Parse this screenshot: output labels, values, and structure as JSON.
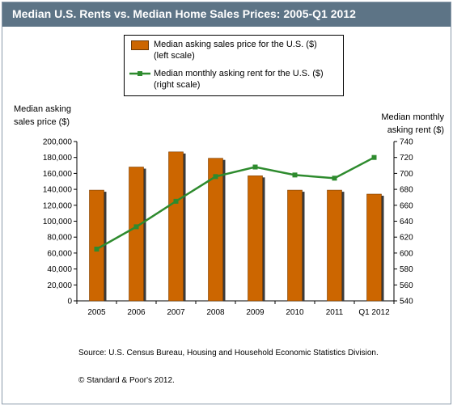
{
  "header": {
    "title": "Median U.S. Rents vs. Median Home Sales Prices: 2005-Q1 2012"
  },
  "legend": {
    "bar_label_line1": "Median asking sales price for the U.S. ($)",
    "bar_label_line2": "(left scale)",
    "line_label_line1": "Median monthly asking rent for the U.S. ($)",
    "line_label_line2": "(right scale)"
  },
  "axes": {
    "left_title_line1": "Median asking",
    "left_title_line2": "sales price  ($)",
    "right_title_line1": "Median monthly",
    "right_title_line2": "asking rent ($)"
  },
  "footer": {
    "source": "Source: U.S. Census Bureau, Housing and Household Economic Statistics Division.",
    "copyright": "© Standard & Poor's 2012."
  },
  "colors": {
    "bar": "#cc6600",
    "bar_shadow": "#3b3b3b",
    "line": "#2e8b2e",
    "title_bar": "#5d7486"
  },
  "chart_data": {
    "type": "bar",
    "categories": [
      "2005",
      "2006",
      "2007",
      "2008",
      "2009",
      "2010",
      "2011",
      "Q1 2012"
    ],
    "series": [
      {
        "name": "Median asking sales price for the U.S. ($)",
        "type": "bar",
        "axis": "left",
        "values": [
          139000,
          168000,
          187000,
          179000,
          157000,
          139000,
          139000,
          134000
        ]
      },
      {
        "name": "Median monthly asking rent for the U.S. ($)",
        "type": "line",
        "axis": "right",
        "values": [
          605,
          633,
          665,
          696,
          708,
          698,
          694,
          720
        ]
      }
    ],
    "y_left": {
      "min": 0,
      "max": 200000,
      "step": 20000,
      "tick_labels": [
        "0",
        "20,000",
        "40,000",
        "60,000",
        "80,000",
        "100,000",
        "120,000",
        "140,000",
        "160,000",
        "180,000",
        "200,000"
      ]
    },
    "y_right": {
      "min": 540,
      "max": 740,
      "step": 20,
      "tick_labels": [
        "540",
        "560",
        "580",
        "600",
        "620",
        "640",
        "660",
        "680",
        "700",
        "720",
        "740"
      ]
    },
    "grid": false,
    "legend_position": "top-center"
  }
}
